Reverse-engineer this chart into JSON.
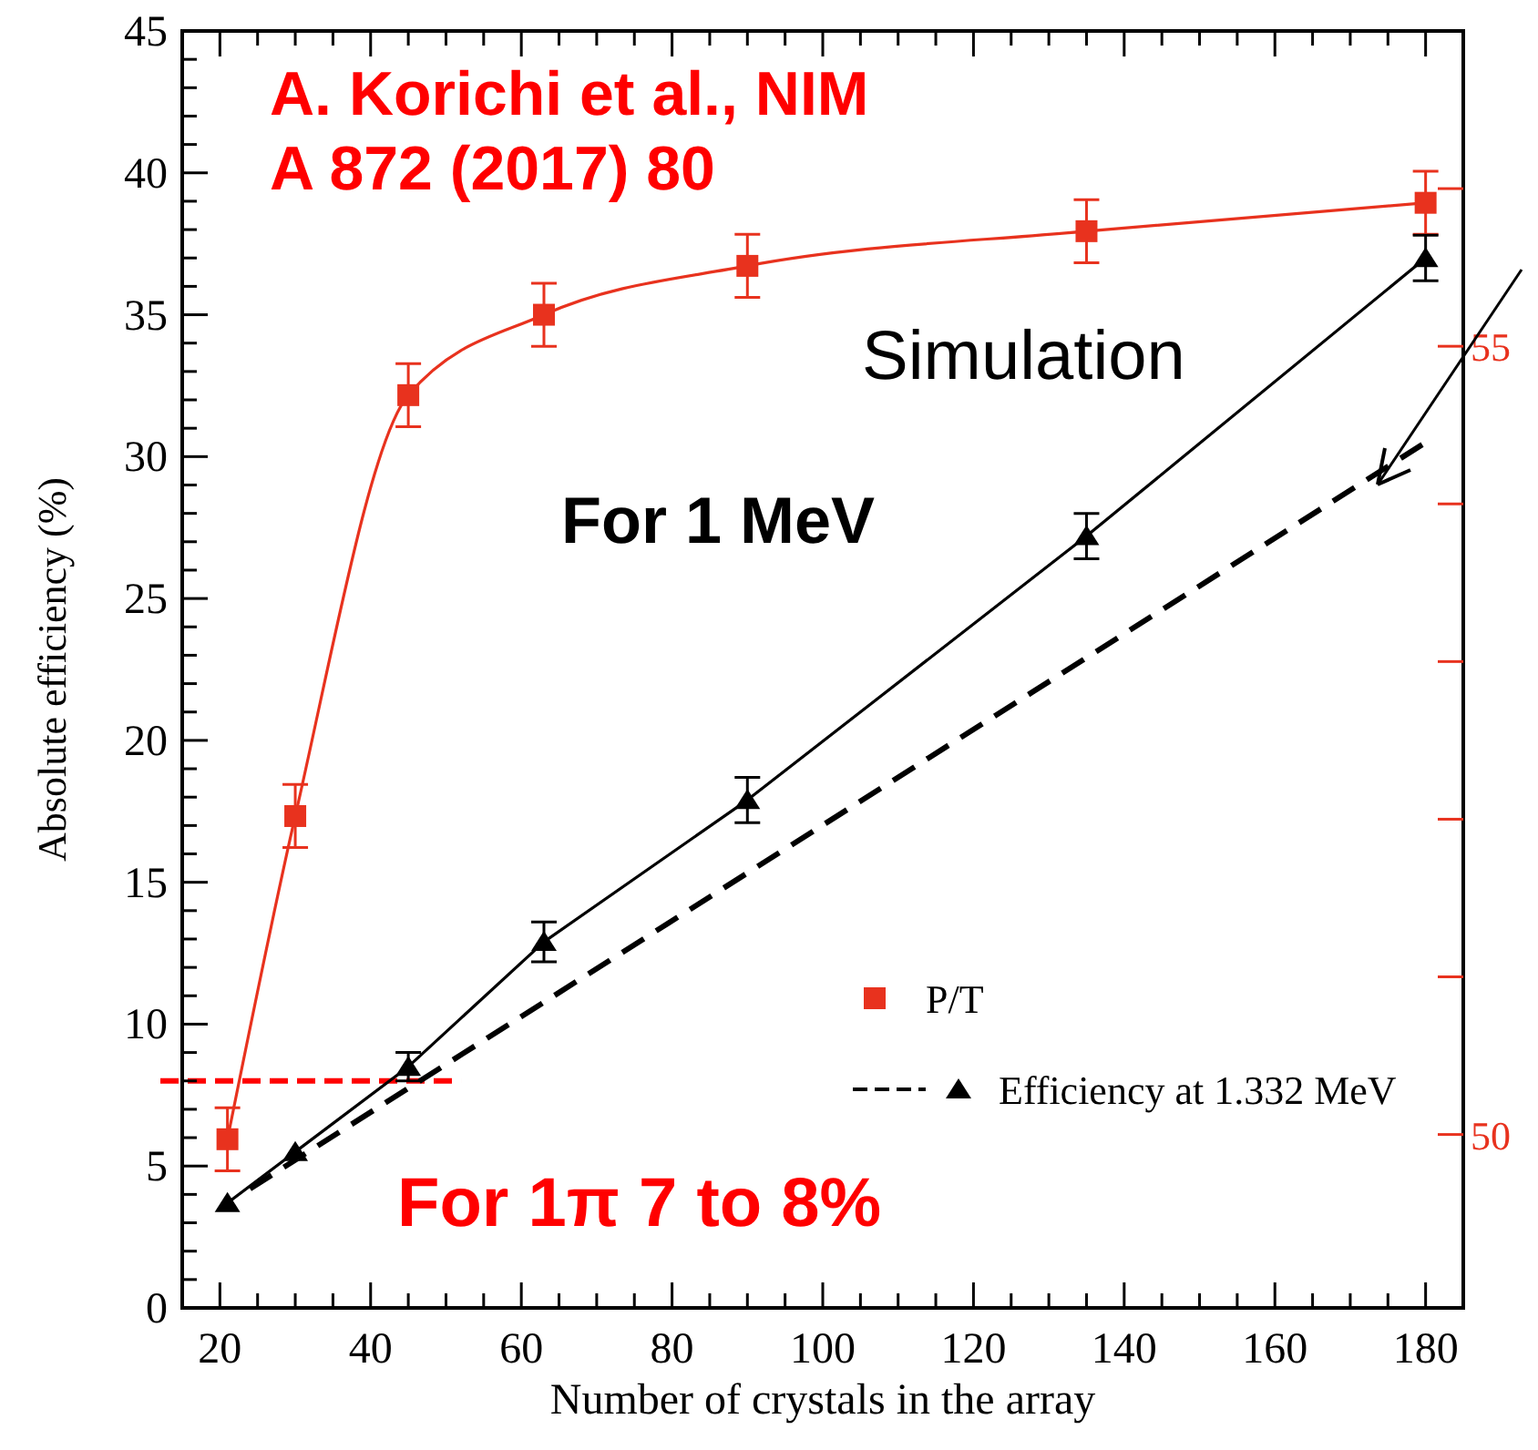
{
  "chart_data": {
    "type": "line",
    "xlabel": "Number of crystals in the array",
    "ylabel": "Absolute efficiency (%)",
    "xlim": [
      15,
      185
    ],
    "xticks": [
      20,
      {
        "value": 25,
        "label": null
      },
      {
        "value": 30,
        "label": null
      },
      {
        "value": 35,
        "label": null
      },
      40,
      {
        "value": 45,
        "label": null
      },
      {
        "value": 50,
        "label": null
      },
      {
        "value": 55,
        "label": null
      },
      60,
      {
        "value": 65,
        "label": null
      },
      {
        "value": 70,
        "label": null
      },
      {
        "value": 75,
        "label": null
      },
      80,
      {
        "value": 85,
        "label": null
      },
      {
        "value": 90,
        "label": null
      },
      {
        "value": 95,
        "label": null
      },
      100,
      {
        "value": 105,
        "label": null
      },
      {
        "value": 110,
        "label": null
      },
      {
        "value": 115,
        "label": null
      },
      120,
      {
        "value": 125,
        "label": null
      },
      {
        "value": 130,
        "label": null
      },
      {
        "value": 135,
        "label": null
      },
      140,
      {
        "value": 145,
        "label": null
      },
      {
        "value": 150,
        "label": null
      },
      {
        "value": 155,
        "label": null
      },
      160,
      {
        "value": 165,
        "label": null
      },
      {
        "value": 170,
        "label": null
      },
      {
        "value": 175,
        "label": null
      },
      180
    ],
    "ylim": [
      0,
      45
    ],
    "yticks": [
      0,
      {
        "value": 1,
        "label": null
      },
      {
        "value": 2,
        "label": null
      },
      {
        "value": 3,
        "label": null
      },
      {
        "value": 4,
        "label": null
      },
      5,
      {
        "value": 6,
        "label": null
      },
      {
        "value": 7,
        "label": null
      },
      {
        "value": 8,
        "label": null
      },
      {
        "value": 9,
        "label": null
      },
      10,
      {
        "value": 11,
        "label": null
      },
      {
        "value": 12,
        "label": null
      },
      {
        "value": 13,
        "label": null
      },
      {
        "value": 14,
        "label": null
      },
      15,
      {
        "value": 16,
        "label": null
      },
      {
        "value": 17,
        "label": null
      },
      {
        "value": 18,
        "label": null
      },
      {
        "value": 19,
        "label": null
      },
      20,
      {
        "value": 21,
        "label": null
      },
      {
        "value": 22,
        "label": null
      },
      {
        "value": 23,
        "label": null
      },
      {
        "value": 24,
        "label": null
      },
      25,
      {
        "value": 26,
        "label": null
      },
      {
        "value": 27,
        "label": null
      },
      {
        "value": 28,
        "label": null
      },
      {
        "value": 29,
        "label": null
      },
      30,
      {
        "value": 31,
        "label": null
      },
      {
        "value": 32,
        "label": null
      },
      {
        "value": 33,
        "label": null
      },
      {
        "value": 34,
        "label": null
      },
      35,
      {
        "value": 36,
        "label": null
      },
      {
        "value": 37,
        "label": null
      },
      {
        "value": 38,
        "label": null
      },
      {
        "value": 39,
        "label": null
      },
      40,
      {
        "value": 41,
        "label": null
      },
      {
        "value": 42,
        "label": null
      },
      {
        "value": 43,
        "label": null
      },
      {
        "value": 44,
        "label": null
      },
      45
    ],
    "y2lim": [
      48.9,
      57
    ],
    "y2ticks": [
      50,
      {
        "value": 51,
        "label": null
      },
      {
        "value": 52,
        "label": null
      },
      {
        "value": 53,
        "label": null
      },
      {
        "value": 54,
        "label": null
      },
      55,
      {
        "value": 56,
        "label": null
      }
    ],
    "series": [
      {
        "name": "P/T",
        "color": "#e8321e",
        "axis": "y2",
        "marker": "square",
        "line_style": "solid",
        "x": [
          21,
          30,
          45,
          63,
          90,
          135,
          180
        ],
        "values": [
          49.97,
          52.02,
          54.69,
          55.2,
          55.51,
          55.73,
          55.91
        ],
        "errors": [
          0.2,
          0.2,
          0.2,
          0.2,
          0.2,
          0.2,
          0.2
        ]
      },
      {
        "name": "Efficiency at 1.332 MeV",
        "color": "#000000",
        "marker": "triangle",
        "line_style": "solid",
        "x": [
          21,
          30,
          45,
          63,
          90,
          135,
          180
        ],
        "values": [
          3.7,
          5.5,
          8.5,
          12.9,
          17.9,
          27.2,
          37
        ],
        "errors": [
          null,
          null,
          0.5,
          0.7,
          0.8,
          0.8,
          0.8
        ]
      },
      {
        "color": "#000000",
        "marker": "none",
        "line_style": "dashed",
        "x": [
          24,
          180
        ],
        "values": [
          4.2,
          30.5
        ]
      }
    ],
    "ref_lines": [
      {
        "axis": "y",
        "value": 8,
        "color": "#ff0000",
        "line_style": "dashed"
      }
    ],
    "legend": "bottom right",
    "grid": false,
    "annotations": [
      "A. Korichi et al., NIM A 872 (2017) 80",
      "Simulation",
      "For 1 MeV",
      "For 1π 7 to 8%"
    ]
  }
}
